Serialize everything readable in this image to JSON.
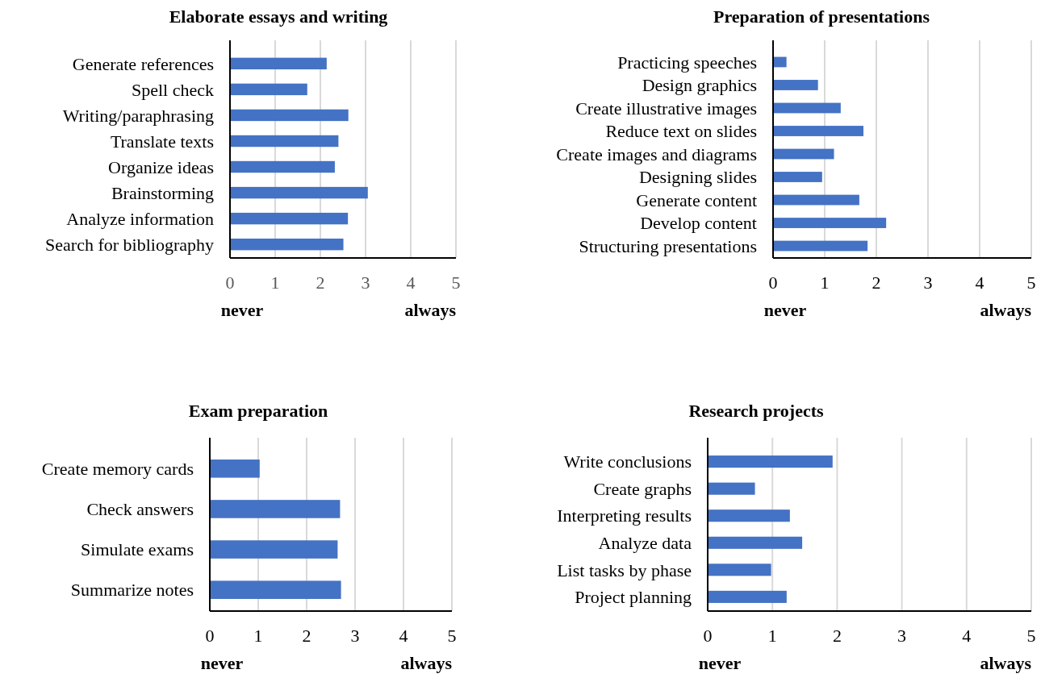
{
  "chart_data": [
    {
      "type": "bar",
      "orientation": "horizontal",
      "title": "Elaborate essays and writing",
      "categories": [
        "Generate references",
        "Spell check",
        "Writing/paraphrasing",
        "Translate texts",
        "Organize ideas",
        "Brainstorming",
        "Analyze information",
        "Search for bibliography"
      ],
      "values": [
        2.14,
        1.71,
        2.62,
        2.4,
        2.32,
        3.05,
        2.61,
        2.51
      ],
      "color": "#4472c4",
      "xlim": [
        0,
        5
      ],
      "xticks": [
        0,
        1,
        2,
        3,
        4,
        5
      ],
      "grid": "x",
      "annotations": [
        "never",
        "always"
      ]
    },
    {
      "type": "bar",
      "orientation": "horizontal",
      "title": "Preparation of presentations",
      "categories": [
        "Practicing speeches",
        "Design graphics",
        "Create illustrative images",
        "Reduce text on slides",
        "Create images and diagrams",
        "Designing slides",
        "Generate content",
        "Develop content",
        "Structuring presentations"
      ],
      "values": [
        0.26,
        0.87,
        1.31,
        1.75,
        1.18,
        0.95,
        1.67,
        2.19,
        1.83
      ],
      "color": "#4472c4",
      "xlim": [
        0,
        5
      ],
      "xticks": [
        0,
        1,
        2,
        3,
        4,
        5
      ],
      "grid": "x",
      "annotations": [
        "never",
        "always"
      ]
    },
    {
      "type": "bar",
      "orientation": "horizontal",
      "title": "Exam preparation",
      "categories": [
        "Create memory cards",
        "Check answers",
        "Simulate exams",
        "Summarize notes"
      ],
      "values": [
        1.03,
        2.69,
        2.64,
        2.71
      ],
      "color": "#4472c4",
      "xlim": [
        0,
        5
      ],
      "xticks": [
        0,
        1,
        2,
        3,
        4,
        5
      ],
      "grid": "x",
      "annotations": [
        "never",
        "always"
      ]
    },
    {
      "type": "bar",
      "orientation": "horizontal",
      "title": "Research projects",
      "categories": [
        "Write conclusions",
        "Create graphs",
        "Interpreting results",
        "Analyze data",
        "List tasks by phase",
        "Project planning"
      ],
      "values": [
        1.93,
        0.73,
        1.27,
        1.46,
        0.98,
        1.22
      ],
      "color": "#4472c4",
      "xlim": [
        0,
        5
      ],
      "xticks": [
        0,
        1,
        2,
        3,
        4,
        5
      ],
      "grid": "x",
      "annotations": [
        "never",
        "always"
      ]
    }
  ]
}
